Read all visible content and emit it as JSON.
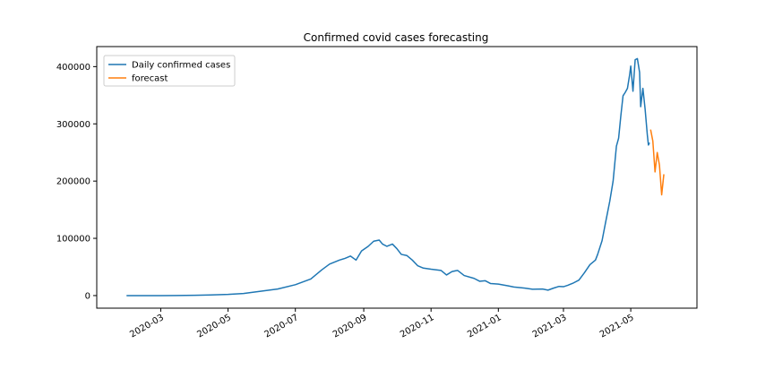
{
  "chart_data": {
    "type": "line",
    "title": "Confirmed covid cases forecasting",
    "xlabel": "",
    "ylabel": "",
    "x_type": "date",
    "xlim": [
      "2020-01-03",
      "2021-06-30"
    ],
    "ylim": [
      -22000,
      435000
    ],
    "x_ticks": [
      {
        "date": "2020-03-01",
        "label": "2020-03"
      },
      {
        "date": "2020-05-01",
        "label": "2020-05"
      },
      {
        "date": "2020-07-01",
        "label": "2020-07"
      },
      {
        "date": "2020-09-01",
        "label": "2020-09"
      },
      {
        "date": "2020-11-01",
        "label": "2020-11"
      },
      {
        "date": "2021-01-01",
        "label": "2021-01"
      },
      {
        "date": "2021-03-01",
        "label": "2021-03"
      },
      {
        "date": "2021-05-01",
        "label": "2021-05"
      }
    ],
    "y_ticks": [
      0,
      100000,
      200000,
      300000,
      400000
    ],
    "grid": false,
    "legend_placement": "top-left",
    "series": [
      {
        "name": "Daily confirmed cases",
        "color": "#1f77b4",
        "points": [
          [
            "2020-01-30",
            0
          ],
          [
            "2020-02-15",
            0
          ],
          [
            "2020-03-01",
            0
          ],
          [
            "2020-03-15",
            80
          ],
          [
            "2020-04-01",
            450
          ],
          [
            "2020-04-15",
            1100
          ],
          [
            "2020-05-01",
            2000
          ],
          [
            "2020-05-15",
            3700
          ],
          [
            "2020-06-01",
            8000
          ],
          [
            "2020-06-15",
            11500
          ],
          [
            "2020-07-01",
            19000
          ],
          [
            "2020-07-15",
            29000
          ],
          [
            "2020-07-25",
            45000
          ],
          [
            "2020-08-01",
            55000
          ],
          [
            "2020-08-10",
            62000
          ],
          [
            "2020-08-15",
            65000
          ],
          [
            "2020-08-20",
            69000
          ],
          [
            "2020-08-25",
            62000
          ],
          [
            "2020-08-30",
            78000
          ],
          [
            "2020-09-05",
            86000
          ],
          [
            "2020-09-10",
            95000
          ],
          [
            "2020-09-15",
            97000
          ],
          [
            "2020-09-18",
            90000
          ],
          [
            "2020-09-22",
            86000
          ],
          [
            "2020-09-27",
            90000
          ],
          [
            "2020-10-01",
            82000
          ],
          [
            "2020-10-05",
            72000
          ],
          [
            "2020-10-10",
            70000
          ],
          [
            "2020-10-15",
            62000
          ],
          [
            "2020-10-20",
            52000
          ],
          [
            "2020-10-25",
            48000
          ],
          [
            "2020-11-01",
            46000
          ],
          [
            "2020-11-10",
            44000
          ],
          [
            "2020-11-15",
            36000
          ],
          [
            "2020-11-20",
            42000
          ],
          [
            "2020-11-25",
            44000
          ],
          [
            "2020-12-01",
            35000
          ],
          [
            "2020-12-10",
            30000
          ],
          [
            "2020-12-15",
            25000
          ],
          [
            "2020-12-20",
            26000
          ],
          [
            "2020-12-25",
            21000
          ],
          [
            "2021-01-01",
            20000
          ],
          [
            "2021-01-10",
            17000
          ],
          [
            "2021-01-15",
            15000
          ],
          [
            "2021-01-20",
            14000
          ],
          [
            "2021-01-25",
            13000
          ],
          [
            "2021-02-01",
            11000
          ],
          [
            "2021-02-10",
            11500
          ],
          [
            "2021-02-15",
            9500
          ],
          [
            "2021-02-20",
            13000
          ],
          [
            "2021-02-25",
            16000
          ],
          [
            "2021-03-01",
            15500
          ],
          [
            "2021-03-05",
            18000
          ],
          [
            "2021-03-10",
            22000
          ],
          [
            "2021-03-15",
            27000
          ],
          [
            "2021-03-20",
            40000
          ],
          [
            "2021-03-25",
            54000
          ],
          [
            "2021-03-30",
            62000
          ],
          [
            "2021-04-01",
            72000
          ],
          [
            "2021-04-05",
            96000
          ],
          [
            "2021-04-08",
            126000
          ],
          [
            "2021-04-12",
            165000
          ],
          [
            "2021-04-15",
            200000
          ],
          [
            "2021-04-18",
            261000
          ],
          [
            "2021-04-20",
            275000
          ],
          [
            "2021-04-22",
            314000
          ],
          [
            "2021-04-24",
            349000
          ],
          [
            "2021-04-26",
            355000
          ],
          [
            "2021-04-28",
            362000
          ],
          [
            "2021-04-30",
            386000
          ],
          [
            "2021-05-01",
            401000
          ],
          [
            "2021-05-03",
            357000
          ],
          [
            "2021-05-05",
            412000
          ],
          [
            "2021-05-07",
            414000
          ],
          [
            "2021-05-09",
            390000
          ],
          [
            "2021-05-10",
            330000
          ],
          [
            "2021-05-12",
            362000
          ],
          [
            "2021-05-14",
            326000
          ],
          [
            "2021-05-16",
            281000
          ],
          [
            "2021-05-17",
            263000
          ],
          [
            "2021-05-18",
            267000
          ]
        ]
      },
      {
        "name": "forecast",
        "color": "#ff7f0e",
        "points": [
          [
            "2021-05-19",
            290000
          ],
          [
            "2021-05-21",
            270000
          ],
          [
            "2021-05-23",
            216000
          ],
          [
            "2021-05-25",
            250000
          ],
          [
            "2021-05-27",
            228000
          ],
          [
            "2021-05-29",
            176000
          ],
          [
            "2021-05-31",
            212000
          ]
        ]
      }
    ]
  }
}
